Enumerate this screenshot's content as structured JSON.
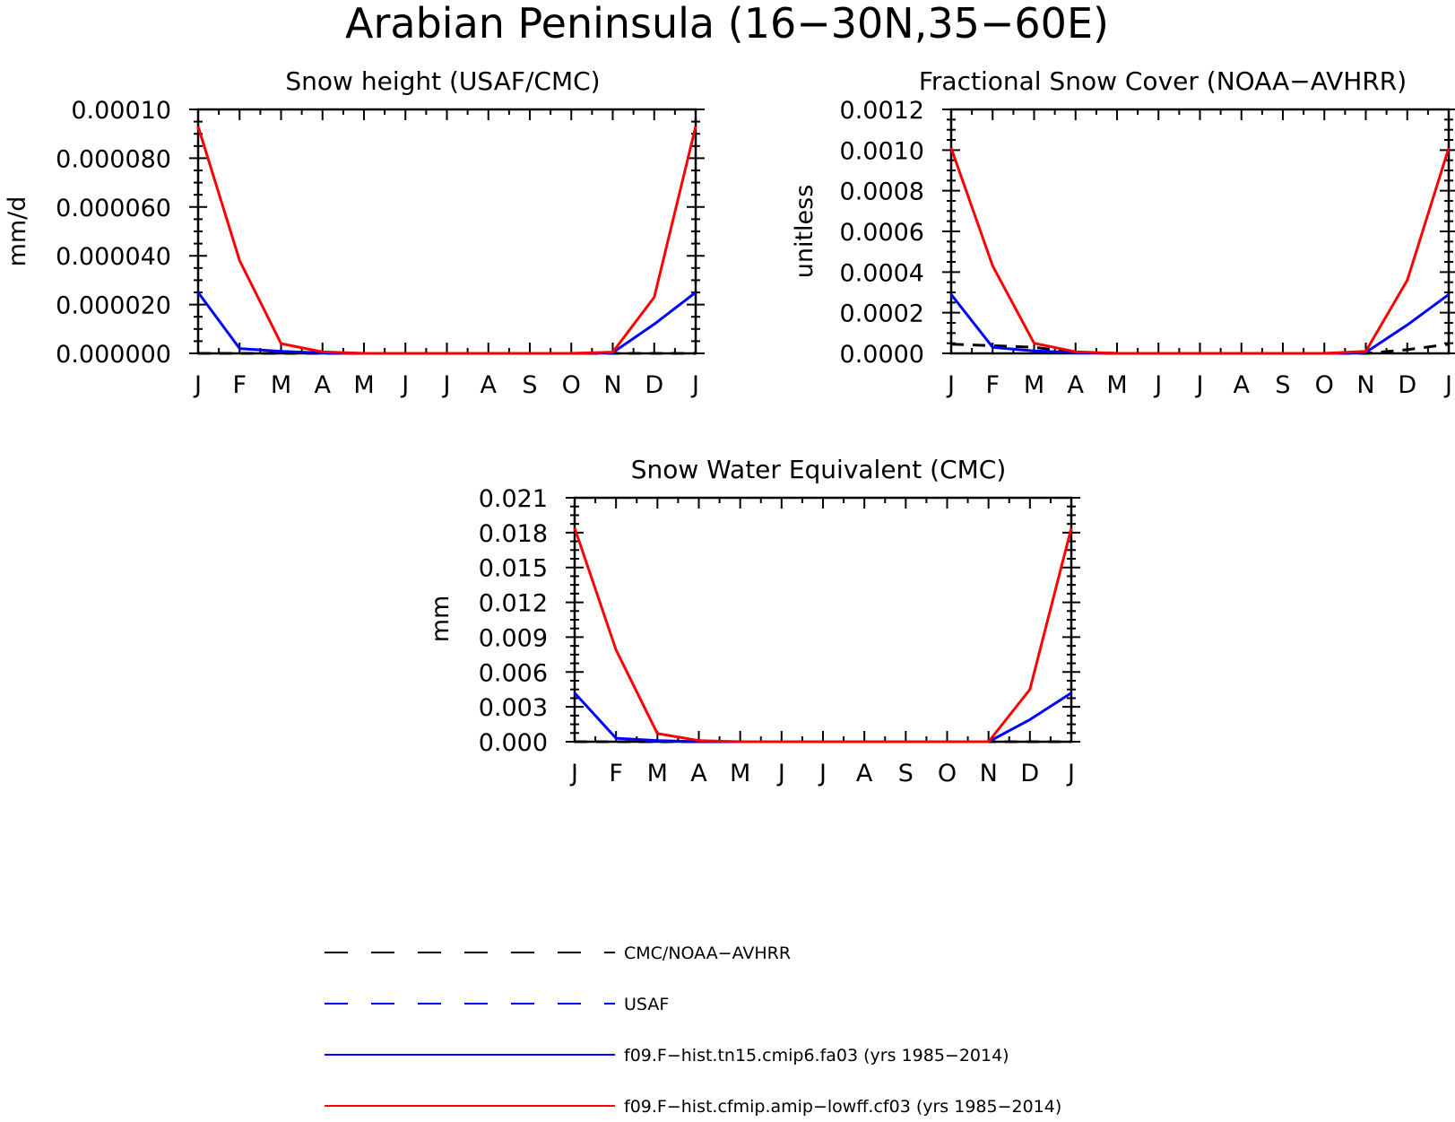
{
  "figure": {
    "title": "Arabian Peninsula (16−30N,35−60E)"
  },
  "months": [
    "J",
    "F",
    "M",
    "A",
    "M",
    "J",
    "J",
    "A",
    "S",
    "O",
    "N",
    "D",
    "J"
  ],
  "legend": {
    "items": [
      {
        "label": "CMC/NOAA−AVHRR",
        "color": "#000000",
        "style": "dashed"
      },
      {
        "label": "USAF",
        "color": "#0000ff",
        "style": "dashed"
      },
      {
        "label": "f09.F−hist.tn15.cmip6.fa03 (yrs 1985−2014)",
        "color": "#0000ff",
        "style": "solid"
      },
      {
        "label": "f09.F−hist.cfmip.amip−lowff.cf03 (yrs 1985−2014)",
        "color": "#ff0000",
        "style": "solid"
      }
    ]
  },
  "chart_data": [
    {
      "type": "line",
      "title": "Snow height (USAF/CMC)",
      "ylabel": "mm/d",
      "ylim": [
        0,
        0.0001
      ],
      "yticks": [
        "0.000000",
        "0.000020",
        "0.000040",
        "0.000060",
        "0.000080",
        "0.00010"
      ],
      "categories": [
        "J",
        "F",
        "M",
        "A",
        "M",
        "J",
        "J",
        "A",
        "S",
        "O",
        "N",
        "D",
        "J"
      ],
      "series": [
        {
          "name": "CMC/NOAA−AVHRR",
          "color": "#000000",
          "dash": true,
          "values": [
            0,
            0,
            0,
            0,
            0,
            0,
            0,
            0,
            0,
            0,
            0,
            0,
            0
          ]
        },
        {
          "name": "f09.F−hist.tn15.cmip6.fa03 (yrs 1985−2014)",
          "color": "#0000ff",
          "dash": false,
          "values": [
            2.5e-05,
            2e-06,
            8e-07,
            2e-07,
            0,
            0,
            0,
            0,
            0,
            0,
            3e-07,
            1.2e-05,
            2.5e-05
          ]
        },
        {
          "name": "f09.F−hist.cfmip.amip−lowff.cf03 (yrs 1985−2014)",
          "color": "#ff0000",
          "dash": false,
          "values": [
            9.3e-05,
            3.8e-05,
            4e-06,
            6e-07,
            0,
            0,
            0,
            0,
            0,
            0,
            5e-07,
            2.3e-05,
            9.3e-05
          ]
        }
      ]
    },
    {
      "type": "line",
      "title": "Fractional Snow Cover (NOAA−AVHRR)",
      "ylabel": "unitless",
      "ylim": [
        0,
        0.0012
      ],
      "yticks": [
        "0.0000",
        "0.0002",
        "0.0004",
        "0.0006",
        "0.0008",
        "0.0010",
        "0.0012"
      ],
      "categories": [
        "J",
        "F",
        "M",
        "A",
        "M",
        "J",
        "J",
        "A",
        "S",
        "O",
        "N",
        "D",
        "J"
      ],
      "series": [
        {
          "name": "CMC/NOAA−AVHRR",
          "color": "#000000",
          "dash": true,
          "values": [
            4.5e-05,
            3.8e-05,
            3e-05,
            5e-06,
            0,
            0,
            0,
            0,
            0,
            0,
            0,
            1.8e-05,
            4.5e-05
          ]
        },
        {
          "name": "f09.F−hist.tn15.cmip6.fa03 (yrs 1985−2014)",
          "color": "#0000ff",
          "dash": false,
          "values": [
            0.00029,
            3e-05,
            1.2e-05,
            4e-06,
            0,
            0,
            0,
            0,
            0,
            0,
            5e-06,
            0.00014,
            0.00029
          ]
        },
        {
          "name": "f09.F−hist.cfmip.amip−lowff.cf03 (yrs 1985−2014)",
          "color": "#ff0000",
          "dash": false,
          "values": [
            0.00101,
            0.00043,
            5e-05,
            8e-06,
            0,
            0,
            0,
            0,
            0,
            0,
            1e-05,
            0.00036,
            0.00101
          ]
        }
      ]
    },
    {
      "type": "line",
      "title": "Snow Water Equivalent (CMC)",
      "ylabel": "mm",
      "ylim": [
        0,
        0.021
      ],
      "yticks": [
        "0.000",
        "0.003",
        "0.006",
        "0.009",
        "0.012",
        "0.015",
        "0.018",
        "0.021"
      ],
      "categories": [
        "J",
        "F",
        "M",
        "A",
        "M",
        "J",
        "J",
        "A",
        "S",
        "O",
        "N",
        "D",
        "J"
      ],
      "series": [
        {
          "name": "CMC/NOAA−AVHRR",
          "color": "#000000",
          "dash": true,
          "values": [
            0,
            0,
            0,
            0,
            0,
            0,
            0,
            0,
            0,
            0,
            0,
            0,
            0
          ]
        },
        {
          "name": "f09.F−hist.tn15.cmip6.fa03 (yrs 1985−2014)",
          "color": "#0000ff",
          "dash": false,
          "values": [
            0.0042,
            0.0003,
            0.0001,
            0,
            0,
            0,
            0,
            0,
            0,
            0,
            0,
            0.0019,
            0.0042
          ]
        },
        {
          "name": "f09.F−hist.cfmip.amip−lowff.cf03 (yrs 1985−2014)",
          "color": "#ff0000",
          "dash": false,
          "values": [
            0.0184,
            0.0079,
            0.0007,
            0.0001,
            0,
            0,
            0,
            0,
            0,
            0,
            0,
            0.0045,
            0.0184
          ]
        }
      ]
    }
  ]
}
